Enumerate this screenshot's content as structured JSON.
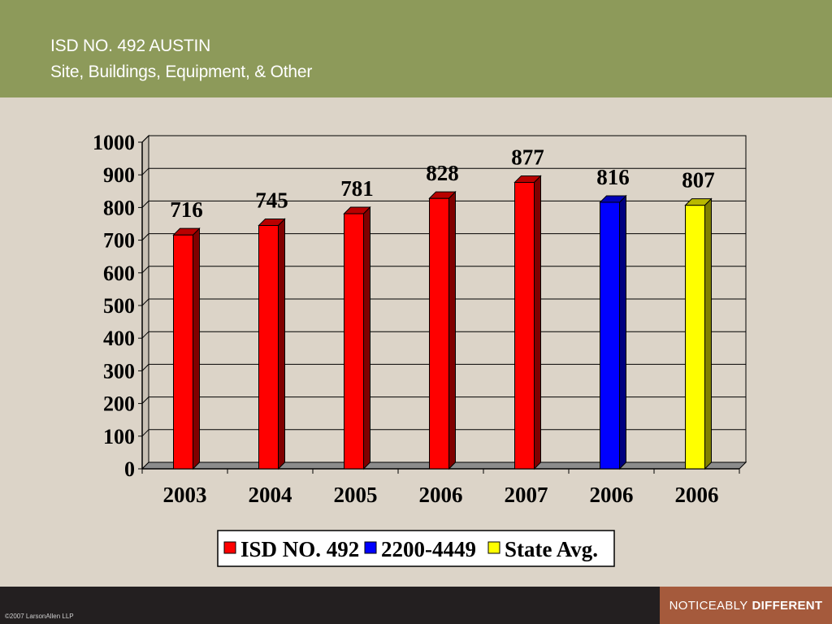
{
  "header": {
    "title_line_1": "ISD NO. 492 AUSTIN",
    "title_line_2": "Site, Buildings, Equipment, & Other"
  },
  "chart_data": {
    "type": "bar",
    "categories": [
      "2003",
      "2004",
      "2005",
      "2006",
      "2007",
      "2006",
      "2006"
    ],
    "values": [
      716,
      745,
      781,
      828,
      877,
      816,
      807
    ],
    "series_of_category": [
      0,
      0,
      0,
      0,
      0,
      1,
      2
    ],
    "series": [
      {
        "name": "ISD NO. 492",
        "color": "#ff0000"
      },
      {
        "name": "2200-4449",
        "color": "#0000ff"
      },
      {
        "name": "State Avg.",
        "color": "#ffff00"
      }
    ],
    "title": "",
    "xlabel": "",
    "ylabel": "",
    "ylim": [
      0,
      1000
    ],
    "yticks": [
      0,
      100,
      200,
      300,
      400,
      500,
      600,
      700,
      800,
      900,
      1000
    ],
    "data_labels": true,
    "grid": true,
    "legend_position": "bottom"
  },
  "footer": {
    "copyright": "©2007 LarsonAllen LLP",
    "tagline_regular": "NOTICEABLY",
    "tagline_bold": "DIFFERENT"
  }
}
